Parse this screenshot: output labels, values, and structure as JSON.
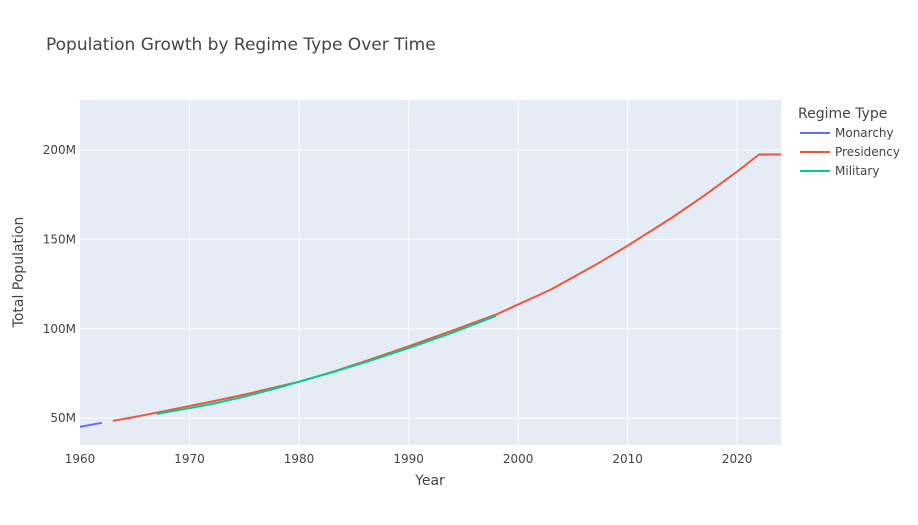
{
  "chart_data": {
    "type": "line",
    "title": "Population Growth by Regime Type Over Time",
    "xlabel": "Year",
    "ylabel": "Total Population",
    "xlim": [
      1960,
      2024
    ],
    "ylim": [
      35,
      228
    ],
    "x_ticks": [
      1960,
      1970,
      1980,
      1990,
      2000,
      2010,
      2020
    ],
    "y_ticks": [
      50,
      100,
      150,
      200
    ],
    "y_tick_labels": [
      "50M",
      "100M",
      "150M",
      "200M"
    ],
    "legend_title": "Regime Type",
    "legend_position": "right",
    "grid": true,
    "series": [
      {
        "name": "Monarchy",
        "color": "#636efa",
        "points": [
          [
            1960,
            45.1
          ],
          [
            1961,
            46.3
          ],
          [
            1962,
            47.4
          ]
        ]
      },
      {
        "name": "Presidency",
        "color": "#ef553b",
        "segments": [
          [
            [
              1963,
              48.5
            ],
            [
              1964,
              49.6
            ],
            [
              1965,
              50.7
            ],
            [
              1966,
              51.9
            ]
          ],
          [
            [
              1966,
              51.9
            ],
            [
              1968,
              54.3
            ],
            [
              1970,
              56.8
            ],
            [
              1972,
              59.3
            ],
            [
              1975,
              63.2
            ],
            [
              1978,
              67.5
            ],
            [
              1980,
              70.4
            ],
            [
              1983,
              75.8
            ],
            [
              1986,
              81.8
            ],
            [
              1990,
              90.2
            ],
            [
              1994,
              99.0
            ],
            [
              1998,
              108.0
            ],
            [
              1999,
              110.8
            ],
            [
              2003,
              122.0
            ],
            [
              2007,
              135.5
            ],
            [
              2010,
              146.5
            ],
            [
              2014,
              162.0
            ],
            [
              2017,
              174.5
            ],
            [
              2020,
              188.0
            ],
            [
              2022,
              197.5
            ],
            [
              2024,
              197.5
            ]
          ]
        ]
      },
      {
        "name": "Military",
        "color": "#00cc96",
        "points": [
          [
            1967,
            52.4
          ],
          [
            1970,
            55.6
          ],
          [
            1972,
            57.9
          ],
          [
            1975,
            62.0
          ],
          [
            1978,
            66.9
          ],
          [
            1980,
            70.4
          ],
          [
            1983,
            75.6
          ],
          [
            1986,
            81.2
          ],
          [
            1990,
            89.2
          ],
          [
            1994,
            97.8
          ],
          [
            1998,
            107.3
          ]
        ]
      }
    ]
  }
}
